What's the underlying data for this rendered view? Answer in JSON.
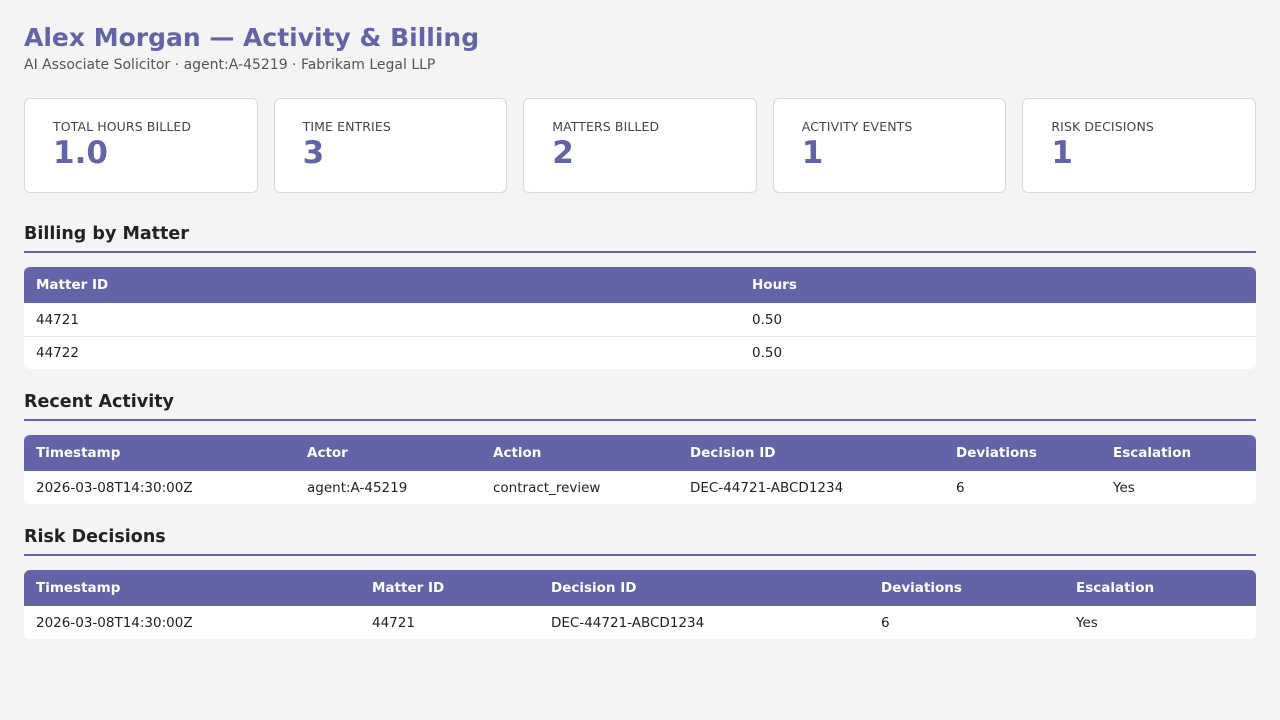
{
  "header": {
    "title": "Alex Morgan — Activity & Billing",
    "subtitle": "AI Associate Solicitor · agent:A-45219 · Fabrikam Legal LLP"
  },
  "kpis": [
    {
      "label": "Total Hours Billed",
      "value": "1.0"
    },
    {
      "label": "Time Entries",
      "value": "3"
    },
    {
      "label": "Matters Billed",
      "value": "2"
    },
    {
      "label": "Activity Events",
      "value": "1"
    },
    {
      "label": "Risk Decisions",
      "value": "1"
    }
  ],
  "billing": {
    "title": "Billing by Matter",
    "columns": [
      "Matter ID",
      "Hours"
    ],
    "rows": [
      [
        "44721",
        "0.50"
      ],
      [
        "44722",
        "0.50"
      ]
    ]
  },
  "activity": {
    "title": "Recent Activity",
    "columns": [
      "Timestamp",
      "Actor",
      "Action",
      "Decision ID",
      "Deviations",
      "Escalation"
    ],
    "rows": [
      [
        "2026-03-08T14:30:00Z",
        "agent:A-45219",
        "contract_review",
        "DEC-44721-ABCD1234",
        "6",
        "Yes"
      ]
    ]
  },
  "risk": {
    "title": "Risk Decisions",
    "columns": [
      "Timestamp",
      "Matter ID",
      "Decision ID",
      "Deviations",
      "Escalation"
    ],
    "rows": [
      [
        "2026-03-08T14:30:00Z",
        "44721",
        "DEC-44721-ABCD1234",
        "6",
        "Yes"
      ]
    ]
  },
  "colors": {
    "accent": "#6264a7",
    "background": "#f4f4f4"
  }
}
